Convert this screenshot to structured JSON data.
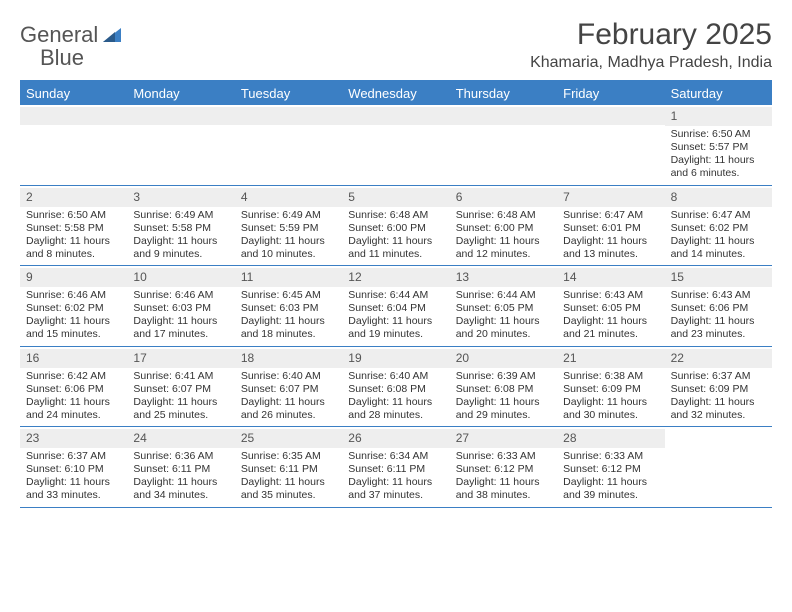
{
  "brand": {
    "name1": "General",
    "name2": "Blue"
  },
  "title": "February 2025",
  "location": "Khamaria, Madhya Pradesh, India",
  "colors": {
    "accent": "#3b7fc4",
    "headerText": "#ffffff",
    "dateBg": "#eeeeee",
    "bodyText": "#333333"
  },
  "dayNames": [
    "Sunday",
    "Monday",
    "Tuesday",
    "Wednesday",
    "Thursday",
    "Friday",
    "Saturday"
  ],
  "weeks": [
    [
      {
        "blank": true
      },
      {
        "blank": true
      },
      {
        "blank": true
      },
      {
        "blank": true
      },
      {
        "blank": true
      },
      {
        "blank": true
      },
      {
        "date": "1",
        "sunrise": "Sunrise: 6:50 AM",
        "sunset": "Sunset: 5:57 PM",
        "daylight": "Daylight: 11 hours and 6 minutes."
      }
    ],
    [
      {
        "date": "2",
        "sunrise": "Sunrise: 6:50 AM",
        "sunset": "Sunset: 5:58 PM",
        "daylight": "Daylight: 11 hours and 8 minutes."
      },
      {
        "date": "3",
        "sunrise": "Sunrise: 6:49 AM",
        "sunset": "Sunset: 5:58 PM",
        "daylight": "Daylight: 11 hours and 9 minutes."
      },
      {
        "date": "4",
        "sunrise": "Sunrise: 6:49 AM",
        "sunset": "Sunset: 5:59 PM",
        "daylight": "Daylight: 11 hours and 10 minutes."
      },
      {
        "date": "5",
        "sunrise": "Sunrise: 6:48 AM",
        "sunset": "Sunset: 6:00 PM",
        "daylight": "Daylight: 11 hours and 11 minutes."
      },
      {
        "date": "6",
        "sunrise": "Sunrise: 6:48 AM",
        "sunset": "Sunset: 6:00 PM",
        "daylight": "Daylight: 11 hours and 12 minutes."
      },
      {
        "date": "7",
        "sunrise": "Sunrise: 6:47 AM",
        "sunset": "Sunset: 6:01 PM",
        "daylight": "Daylight: 11 hours and 13 minutes."
      },
      {
        "date": "8",
        "sunrise": "Sunrise: 6:47 AM",
        "sunset": "Sunset: 6:02 PM",
        "daylight": "Daylight: 11 hours and 14 minutes."
      }
    ],
    [
      {
        "date": "9",
        "sunrise": "Sunrise: 6:46 AM",
        "sunset": "Sunset: 6:02 PM",
        "daylight": "Daylight: 11 hours and 15 minutes."
      },
      {
        "date": "10",
        "sunrise": "Sunrise: 6:46 AM",
        "sunset": "Sunset: 6:03 PM",
        "daylight": "Daylight: 11 hours and 17 minutes."
      },
      {
        "date": "11",
        "sunrise": "Sunrise: 6:45 AM",
        "sunset": "Sunset: 6:03 PM",
        "daylight": "Daylight: 11 hours and 18 minutes."
      },
      {
        "date": "12",
        "sunrise": "Sunrise: 6:44 AM",
        "sunset": "Sunset: 6:04 PM",
        "daylight": "Daylight: 11 hours and 19 minutes."
      },
      {
        "date": "13",
        "sunrise": "Sunrise: 6:44 AM",
        "sunset": "Sunset: 6:05 PM",
        "daylight": "Daylight: 11 hours and 20 minutes."
      },
      {
        "date": "14",
        "sunrise": "Sunrise: 6:43 AM",
        "sunset": "Sunset: 6:05 PM",
        "daylight": "Daylight: 11 hours and 21 minutes."
      },
      {
        "date": "15",
        "sunrise": "Sunrise: 6:43 AM",
        "sunset": "Sunset: 6:06 PM",
        "daylight": "Daylight: 11 hours and 23 minutes."
      }
    ],
    [
      {
        "date": "16",
        "sunrise": "Sunrise: 6:42 AM",
        "sunset": "Sunset: 6:06 PM",
        "daylight": "Daylight: 11 hours and 24 minutes."
      },
      {
        "date": "17",
        "sunrise": "Sunrise: 6:41 AM",
        "sunset": "Sunset: 6:07 PM",
        "daylight": "Daylight: 11 hours and 25 minutes."
      },
      {
        "date": "18",
        "sunrise": "Sunrise: 6:40 AM",
        "sunset": "Sunset: 6:07 PM",
        "daylight": "Daylight: 11 hours and 26 minutes."
      },
      {
        "date": "19",
        "sunrise": "Sunrise: 6:40 AM",
        "sunset": "Sunset: 6:08 PM",
        "daylight": "Daylight: 11 hours and 28 minutes."
      },
      {
        "date": "20",
        "sunrise": "Sunrise: 6:39 AM",
        "sunset": "Sunset: 6:08 PM",
        "daylight": "Daylight: 11 hours and 29 minutes."
      },
      {
        "date": "21",
        "sunrise": "Sunrise: 6:38 AM",
        "sunset": "Sunset: 6:09 PM",
        "daylight": "Daylight: 11 hours and 30 minutes."
      },
      {
        "date": "22",
        "sunrise": "Sunrise: 6:37 AM",
        "sunset": "Sunset: 6:09 PM",
        "daylight": "Daylight: 11 hours and 32 minutes."
      }
    ],
    [
      {
        "date": "23",
        "sunrise": "Sunrise: 6:37 AM",
        "sunset": "Sunset: 6:10 PM",
        "daylight": "Daylight: 11 hours and 33 minutes."
      },
      {
        "date": "24",
        "sunrise": "Sunrise: 6:36 AM",
        "sunset": "Sunset: 6:11 PM",
        "daylight": "Daylight: 11 hours and 34 minutes."
      },
      {
        "date": "25",
        "sunrise": "Sunrise: 6:35 AM",
        "sunset": "Sunset: 6:11 PM",
        "daylight": "Daylight: 11 hours and 35 minutes."
      },
      {
        "date": "26",
        "sunrise": "Sunrise: 6:34 AM",
        "sunset": "Sunset: 6:11 PM",
        "daylight": "Daylight: 11 hours and 37 minutes."
      },
      {
        "date": "27",
        "sunrise": "Sunrise: 6:33 AM",
        "sunset": "Sunset: 6:12 PM",
        "daylight": "Daylight: 11 hours and 38 minutes."
      },
      {
        "date": "28",
        "sunrise": "Sunrise: 6:33 AM",
        "sunset": "Sunset: 6:12 PM",
        "daylight": "Daylight: 11 hours and 39 minutes."
      },
      {
        "blank": true,
        "noHead": true
      }
    ]
  ]
}
